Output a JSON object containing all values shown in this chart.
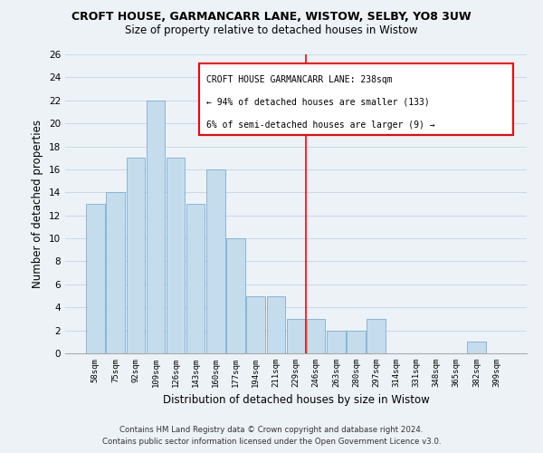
{
  "title": "CROFT HOUSE, GARMANCARR LANE, WISTOW, SELBY, YO8 3UW",
  "subtitle": "Size of property relative to detached houses in Wistow",
  "xlabel": "Distribution of detached houses by size in Wistow",
  "ylabel": "Number of detached properties",
  "bar_labels": [
    "58sqm",
    "75sqm",
    "92sqm",
    "109sqm",
    "126sqm",
    "143sqm",
    "160sqm",
    "177sqm",
    "194sqm",
    "211sqm",
    "229sqm",
    "246sqm",
    "263sqm",
    "280sqm",
    "297sqm",
    "314sqm",
    "331sqm",
    "348sqm",
    "365sqm",
    "382sqm",
    "399sqm"
  ],
  "bar_values": [
    13,
    14,
    17,
    22,
    17,
    13,
    16,
    10,
    5,
    5,
    3,
    3,
    2,
    2,
    3,
    0,
    0,
    0,
    0,
    1,
    0
  ],
  "bar_color": "#c5dced",
  "bar_edge_color": "#7bafd4",
  "grid_color": "#c8d8e8",
  "background_color": "#edf2f7",
  "annotation_text_line1": "CROFT HOUSE GARMANCARR LANE: 238sqm",
  "annotation_text_line2": "← 94% of detached houses are smaller (133)",
  "annotation_text_line3": "6% of semi-detached houses are larger (9) →",
  "footer_line1": "Contains HM Land Registry data © Crown copyright and database right 2024.",
  "footer_line2": "Contains public sector information licensed under the Open Government Licence v3.0.",
  "ylim": [
    0,
    26
  ],
  "yticks": [
    0,
    2,
    4,
    6,
    8,
    10,
    12,
    14,
    16,
    18,
    20,
    22,
    24,
    26
  ],
  "red_line_x": 11.0
}
